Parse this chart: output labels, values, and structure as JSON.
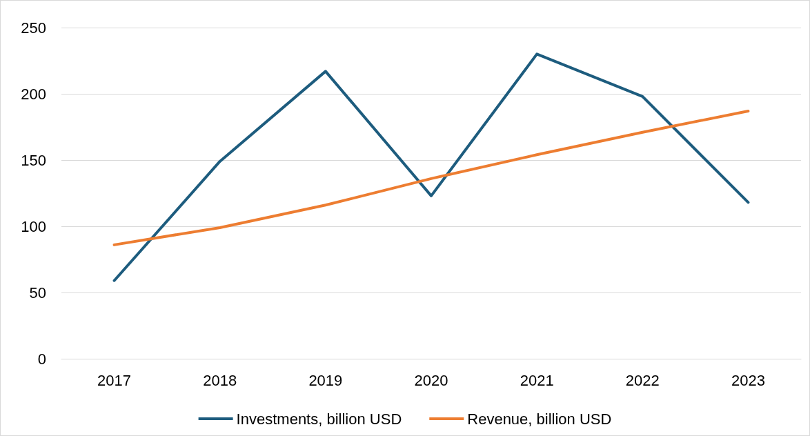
{
  "chart_data": {
    "type": "line",
    "categories": [
      "2017",
      "2018",
      "2019",
      "2020",
      "2021",
      "2022",
      "2023"
    ],
    "series": [
      {
        "name": "Investments, billion USD",
        "color": "#1d5c7e",
        "values": [
          59,
          149,
          217,
          123,
          230,
          198,
          118
        ]
      },
      {
        "name": "Revenue, billion USD",
        "color": "#ed7d31",
        "values": [
          86,
          99,
          116,
          136,
          154,
          171,
          187
        ]
      }
    ],
    "ylim": [
      0,
      250
    ],
    "yticks": [
      0,
      50,
      100,
      150,
      200,
      250
    ],
    "grid": "y",
    "legend": "bottom",
    "marker": "none",
    "line_style": "solid"
  }
}
